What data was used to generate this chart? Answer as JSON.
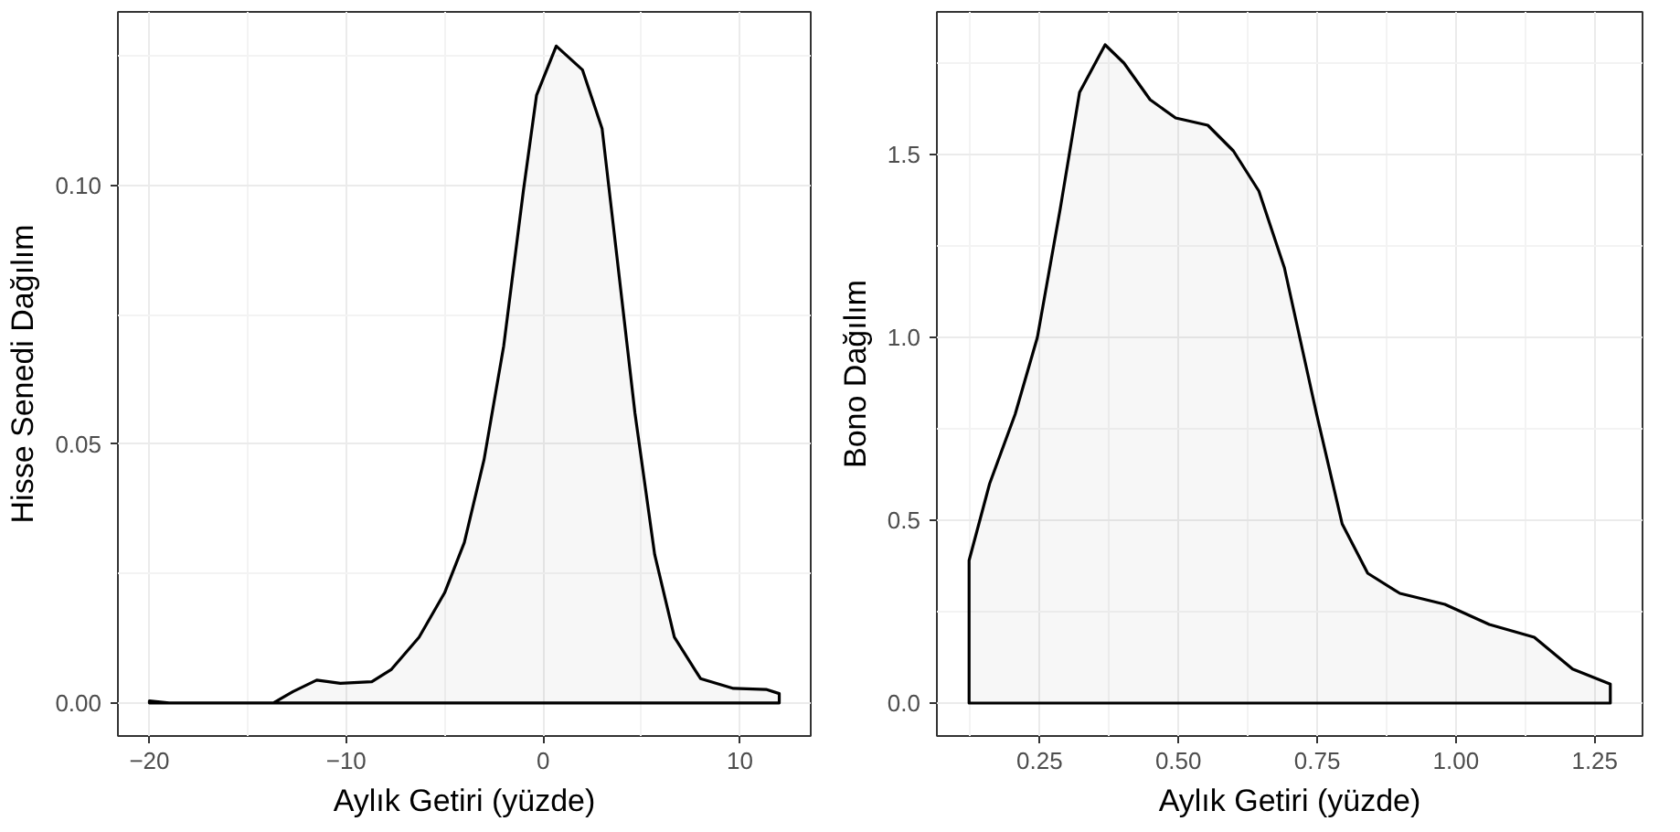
{
  "chart_data": [
    {
      "type": "area",
      "xlabel": "Aylık Getiri (yüzde)",
      "ylabel": "Hisse Senedi Dağılım",
      "xlim": [
        -21.6,
        13.6
      ],
      "ylim": [
        -0.0064,
        0.1336
      ],
      "xticks": [
        -20,
        -10,
        0,
        10
      ],
      "yticks": [
        {
          "value": 0,
          "label": "0.00"
        },
        {
          "value": 0.05,
          "label": "0.05"
        },
        {
          "value": 0.1,
          "label": "0.10"
        }
      ],
      "grid": true,
      "series": [
        {
          "color": "#000000",
          "x": [
            -20,
            -19,
            -13.7,
            -12.7,
            -11.5,
            -10.3,
            -8.7,
            -7.7,
            -6.3,
            -5,
            -4,
            -3,
            -2,
            -1,
            -0.33,
            0.67,
            2,
            3,
            3.67,
            4.67,
            5.67,
            6.67,
            8,
            9.67,
            11.33,
            12
          ],
          "values": [
            0.0004,
            0,
            0,
            0.0022,
            0.0044,
            0.0038,
            0.0041,
            0.0065,
            0.0127,
            0.0213,
            0.031,
            0.047,
            0.069,
            0.099,
            0.1175,
            0.127,
            0.1224,
            0.111,
            0.089,
            0.056,
            0.0287,
            0.0127,
            0.0047,
            0.0028,
            0.0026,
            0.0018
          ]
        }
      ]
    },
    {
      "type": "area",
      "xlabel": "Aylık Getiri (yüzde)",
      "ylabel": "Bono Dağılım",
      "xlim": [
        0.065,
        1.336
      ],
      "ylim": [
        -0.09,
        1.89
      ],
      "xticks": [
        0.25,
        {
          "value": 0.5,
          "label": "0.50"
        },
        0.75,
        {
          "value": 1,
          "label": "1.00"
        },
        1.25
      ],
      "yticks": [
        {
          "value": 0,
          "label": "0.0"
        },
        0.5,
        {
          "value": 1,
          "label": "1.0"
        },
        1.5
      ],
      "grid": true,
      "series": [
        {
          "color": "#000000",
          "x": [
            0.123,
            0.16,
            0.206,
            0.246,
            0.287,
            0.322,
            0.368,
            0.402,
            0.449,
            0.495,
            0.553,
            0.599,
            0.645,
            0.691,
            0.749,
            0.795,
            0.841,
            0.899,
            0.98,
            1.06,
            1.141,
            1.21,
            1.278
          ],
          "values": [
            0.39,
            0.6,
            0.79,
            1.0,
            1.35,
            1.67,
            1.8,
            1.75,
            1.65,
            1.6,
            1.58,
            1.51,
            1.4,
            1.19,
            0.79,
            0.49,
            0.355,
            0.3,
            0.27,
            0.215,
            0.18,
            0.093,
            0.052
          ]
        }
      ]
    }
  ]
}
